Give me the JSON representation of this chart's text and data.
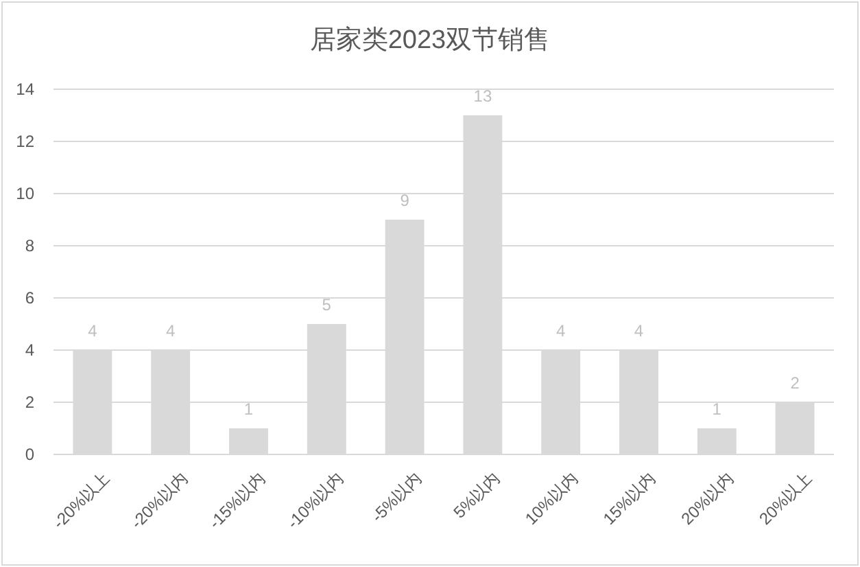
{
  "chart_data": {
    "type": "bar",
    "title": "居家类2023双节销售",
    "categories": [
      "-20%以上",
      "-20%以内",
      "-15%以内",
      "-10%以内",
      "-5%以内",
      "5%以内",
      "10%以内",
      "15%以内",
      "20%以内",
      "20%以上"
    ],
    "values": [
      4,
      4,
      1,
      5,
      9,
      13,
      4,
      4,
      1,
      2
    ],
    "color": "#d9d9d9",
    "ylim": [
      0,
      14
    ],
    "yticks": [
      0,
      2,
      4,
      6,
      8,
      10,
      12,
      14
    ],
    "grid": "y",
    "data_labels": true
  }
}
